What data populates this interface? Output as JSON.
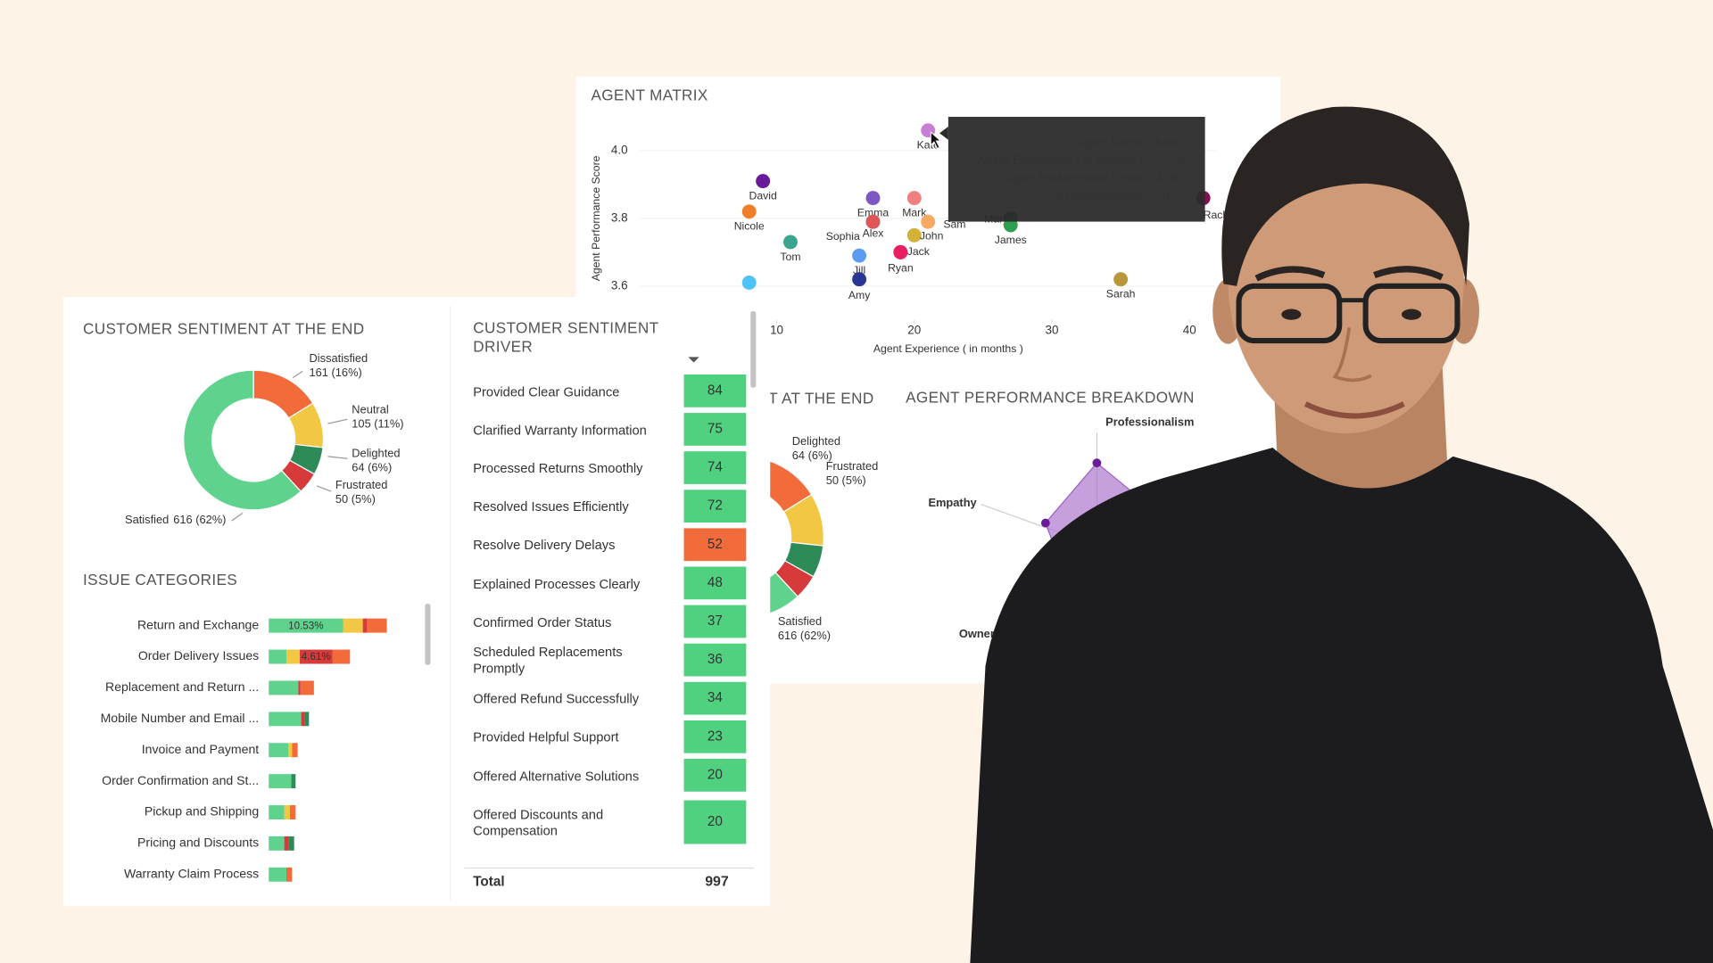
{
  "agent_matrix": {
    "title": "AGENT MATRIX",
    "x_label": "Agent Experience ( in months )",
    "y_label": "Agent Performance Score",
    "xlim": [
      0,
      42
    ],
    "ylim": [
      3.5,
      4.1
    ],
    "xticks": [
      10,
      20,
      30,
      40
    ],
    "yticks": [
      3.6,
      3.8,
      {
        "value": 4,
        "label": "4.0"
      }
    ],
    "points": [
      {
        "name": "Kate",
        "x": 21,
        "y": 4.06,
        "color": "#c77fd6"
      },
      {
        "name": "David",
        "x": 9,
        "y": 3.91,
        "color": "#6a1b9a"
      },
      {
        "name": "Nicole",
        "x": 8,
        "y": 3.82,
        "color": "#f07f2c"
      },
      {
        "name": "Tom",
        "x": 11,
        "y": 3.73,
        "color": "#3aa58f"
      },
      {
        "name": "Sophia",
        "x": 17,
        "y": 3.79,
        "color": "#26a69a"
      },
      {
        "name": "Emma",
        "x": 17,
        "y": 3.86,
        "color": "#7e57c2"
      },
      {
        "name": "Alex",
        "x": 17,
        "y": 3.79,
        "color": "#e05555"
      },
      {
        "name": "Mark",
        "x": 20,
        "y": 3.86,
        "color": "#f08080"
      },
      {
        "name": "Sam",
        "x": 21,
        "y": 3.79,
        "color": "#f5a962"
      },
      {
        "name": "John",
        "x": 20,
        "y": 3.75,
        "color": "#d4b23a"
      },
      {
        "name": "Jill",
        "x": 16,
        "y": 3.69,
        "color": "#5b9bf0"
      },
      {
        "name": "Ryan",
        "x": 19,
        "y": 3.7,
        "color": "#c2185b"
      },
      {
        "name": "Jack",
        "x": 19,
        "y": 3.7,
        "color": "#e91e63"
      },
      {
        "name": "Amy",
        "x": 16,
        "y": 3.62,
        "color": "#283593"
      },
      {
        "name": "Mary",
        "x": 27,
        "y": 3.8,
        "color": "#1b7a3a"
      },
      {
        "name": "James",
        "x": 27,
        "y": 3.78,
        "color": "#2e9e4f"
      },
      {
        "name": "Sarah",
        "x": 35,
        "y": 3.62,
        "color": "#b8963a"
      },
      {
        "name": "Rachel",
        "x": 41,
        "y": 3.86,
        "color": "#880e4f"
      },
      {
        "name": null,
        "x": 8,
        "y": 3.61,
        "color": "#4fc3f7"
      }
    ],
    "tooltip": {
      "rows": [
        [
          "Agent Name",
          "Kate"
        ],
        [
          "Agent Experience ( in months )",
          "21.00"
        ],
        [
          "Agent Performance Score",
          "4.06"
        ],
        [
          "# Conversations",
          "10"
        ]
      ]
    }
  },
  "sentiment": {
    "title": "CUSTOMER SENTIMENT AT THE END",
    "slices": [
      {
        "name": "Dissatisfied",
        "value": 161,
        "value_label": "161 (16%)",
        "color": "#f26b3a"
      },
      {
        "name": "Neutral",
        "value": 105,
        "value_label": "105 (11%)",
        "color": "#f2c744"
      },
      {
        "name": "Delighted",
        "value": 64,
        "value_label": "64 (6%)",
        "color": "#2e8b57"
      },
      {
        "name": "Frustrated",
        "value": 50,
        "value_label": "50 (5%)",
        "color": "#d63a3a"
      },
      {
        "name": "Satisfied",
        "value": 616,
        "value_label": "616 (62%)",
        "color": "#5fd38d"
      }
    ]
  },
  "issue_categories": {
    "title": "ISSUE CATEGORIES",
    "categories": [
      "Return and Exchange",
      "Order Delivery Issues",
      "Replacement and Return ...",
      "Mobile Number and Email ...",
      "Invoice and Payment",
      "Order Confirmation and St...",
      "Pickup and Shipping",
      "Pricing and Discounts",
      "Warranty Claim Process"
    ],
    "series": [
      {
        "color": "#5fd38d",
        "values": [
          10.53,
          2.5,
          4.2,
          4.6,
          2.8,
          3.2,
          2.2,
          2.2,
          2.5
        ],
        "value_labels": [
          "10.53%",
          null,
          null,
          null,
          null,
          null,
          null,
          null,
          null
        ]
      },
      {
        "color": "#f2c744",
        "values": [
          2.8,
          1.9,
          0,
          0,
          0.5,
          0,
          0.8,
          0,
          0
        ]
      },
      {
        "color": "#d63a3a",
        "values": [
          0.6,
          4.61,
          0.3,
          0.5,
          0,
          0,
          0,
          0.6,
          0
        ],
        "value_labels": [
          null,
          "4.61%",
          null,
          null,
          null,
          null,
          null,
          null,
          null
        ]
      },
      {
        "color": "#f26b3a",
        "values": [
          2.8,
          2.5,
          1.9,
          0,
          0.8,
          0,
          0.8,
          0,
          0.8
        ]
      },
      {
        "color": "#2e8b57",
        "values": [
          0,
          0,
          0,
          0.6,
          0,
          0.6,
          0,
          0.8,
          0
        ]
      }
    ]
  },
  "driver": {
    "title": "CUSTOMER SENTIMENT DRIVER",
    "rows": [
      {
        "label": "Provided Clear Guidance",
        "value": 84,
        "color": "#4fd17f"
      },
      {
        "label": "Clarified Warranty Information",
        "value": 75,
        "color": "#4fd17f"
      },
      {
        "label": "Processed Returns Smoothly",
        "value": 74,
        "color": "#4fd17f"
      },
      {
        "label": "Resolved Issues Efficiently",
        "value": 72,
        "color": "#4fd17f"
      },
      {
        "label": "Resolve Delivery Delays",
        "value": 52,
        "color": "#f26b3a"
      },
      {
        "label": "Explained Processes Clearly",
        "value": 48,
        "color": "#4fd17f"
      },
      {
        "label": "Confirmed Order Status",
        "value": 37,
        "color": "#4fd17f"
      },
      {
        "label": "Scheduled Replacements Promptly",
        "value": 36,
        "color": "#4fd17f"
      },
      {
        "label": "Offered Refund Successfully",
        "value": 34,
        "color": "#4fd17f"
      },
      {
        "label": "Provided Helpful Support",
        "value": 23,
        "color": "#4fd17f"
      },
      {
        "label": "Offered Alternative Solutions",
        "value": 20,
        "color": "#4fd17f"
      },
      {
        "label": "Offered Discounts and Compensation",
        "value": 20,
        "color": "#4fd17f"
      }
    ],
    "total_label": "Total",
    "total": 997
  },
  "performance": {
    "title": "AGENT PERFORMANCE BREAKDOWN",
    "axes": [
      "Professionalism",
      "Empathy",
      "Ownership"
    ]
  }
}
